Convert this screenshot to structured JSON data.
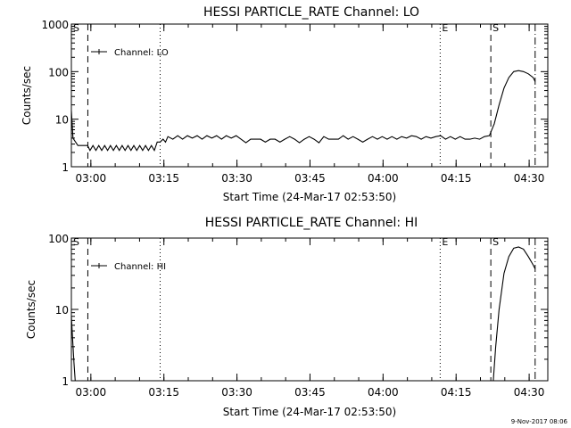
{
  "footer_date": "9-Nov-2017 08:06",
  "chart_data": [
    {
      "type": "line",
      "title": "HESSI PARTICLE_RATE Channel: LO",
      "xlabel": "Start Time (24-Mar-17 02:53:50)",
      "ylabel": "Counts/sec",
      "yscale": "log",
      "ylim": [
        1,
        1000
      ],
      "yticks": [
        1,
        10,
        100,
        1000
      ],
      "ytick_labels": [
        "1",
        "10",
        "100",
        "1000"
      ],
      "xlim_minutes": [
        2.17,
        100.0
      ],
      "xticks_minutes": [
        6.17,
        21.17,
        36.17,
        51.17,
        66.17,
        81.17,
        96.17
      ],
      "xtick_labels": [
        "03:00",
        "03:15",
        "03:30",
        "03:45",
        "04:00",
        "04:15",
        "04:30"
      ],
      "legend": "Channel: LO",
      "markers": [
        {
          "label": "S",
          "x_minutes": 2.17,
          "style": "solid"
        },
        {
          "label": "",
          "x_minutes": 5.55,
          "style": "dashed"
        },
        {
          "label": "",
          "x_minutes": 20.4,
          "style": "dotted"
        },
        {
          "label": "E",
          "x_minutes": 77.9,
          "style": "dotted"
        },
        {
          "label": "S",
          "x_minutes": 88.3,
          "style": "dashed"
        },
        {
          "label": "",
          "x_minutes": 97.4,
          "style": "dashdot"
        }
      ],
      "series": [
        {
          "x": [
            2.17,
            2.5,
            3.5,
            5.5,
            6.0,
            6.6,
            7.2,
            7.8,
            8.4,
            9.0,
            9.6,
            10.2,
            10.8,
            11.4,
            12.0,
            12.6,
            13.2,
            13.8,
            14.4,
            15.0,
            15.6,
            16.2,
            16.8,
            17.4,
            18.0,
            18.6,
            19.2,
            19.8,
            20.4,
            21.0,
            21.5,
            22.0,
            23.0,
            24.0,
            25.0,
            26.0,
            27.0,
            28.0,
            29.0,
            30.0,
            31.0,
            32.0,
            33.0,
            34.0,
            35.0,
            36.0,
            37.0,
            38.0,
            39.0,
            40.0,
            41.0,
            42.0,
            43.0,
            44.0,
            45.0,
            46.0,
            47.0,
            48.0,
            49.0,
            50.0,
            51.0,
            52.0,
            53.0,
            54.0,
            55.0,
            56.0,
            57.0,
            58.0,
            59.0,
            60.0,
            61.0,
            62.0,
            63.0,
            64.0,
            65.0,
            66.0,
            67.0,
            68.0,
            69.0,
            70.0,
            71.0,
            72.0,
            73.0,
            74.0,
            75.0,
            76.0,
            77.0,
            78.0,
            79.0,
            80.0,
            81.0,
            82.0,
            83.0,
            84.0,
            85.0,
            86.0,
            87.0,
            88.0,
            89.0,
            90.0,
            91.0,
            92.0,
            93.0,
            94.0,
            95.0,
            96.0,
            97.0,
            97.4
          ],
          "values": [
            15,
            4,
            2.8,
            2.8,
            2.2,
            2.8,
            2.2,
            2.8,
            2.2,
            2.8,
            2.2,
            2.8,
            2.2,
            2.8,
            2.2,
            2.8,
            2.2,
            2.8,
            2.2,
            2.8,
            2.2,
            2.8,
            2.2,
            2.8,
            2.2,
            2.8,
            2.2,
            3.3,
            3.3,
            3.8,
            3.3,
            4.3,
            3.8,
            4.5,
            3.8,
            4.5,
            4.0,
            4.5,
            3.8,
            4.5,
            4.0,
            4.5,
            3.8,
            4.5,
            4.0,
            4.5,
            3.8,
            3.2,
            3.8,
            3.8,
            3.8,
            3.3,
            3.8,
            3.8,
            3.3,
            3.8,
            4.3,
            3.8,
            3.2,
            3.8,
            4.3,
            3.8,
            3.2,
            4.3,
            3.8,
            3.8,
            3.8,
            4.5,
            3.8,
            4.3,
            3.8,
            3.3,
            3.8,
            4.3,
            3.8,
            4.3,
            3.8,
            4.3,
            3.8,
            4.3,
            4.0,
            4.5,
            4.3,
            3.8,
            4.3,
            4.0,
            4.3,
            4.5,
            3.8,
            4.3,
            3.8,
            4.3,
            3.8,
            3.8,
            4.0,
            3.8,
            4.3,
            4.5,
            8,
            20,
            45,
            75,
            100,
            105,
            100,
            90,
            75,
            62
          ]
        }
      ]
    },
    {
      "type": "line",
      "title": "HESSI PARTICLE_RATE Channel: HI",
      "xlabel": "Start Time (24-Mar-17 02:53:50)",
      "ylabel": "Counts/sec",
      "yscale": "log",
      "ylim": [
        1,
        100
      ],
      "yticks": [
        1,
        10,
        100
      ],
      "ytick_labels": [
        "1",
        "10",
        "100"
      ],
      "xlim_minutes": [
        2.17,
        100.0
      ],
      "xticks_minutes": [
        6.17,
        21.17,
        36.17,
        51.17,
        66.17,
        81.17,
        96.17
      ],
      "xtick_labels": [
        "03:00",
        "03:15",
        "03:30",
        "03:45",
        "04:00",
        "04:15",
        "04:30"
      ],
      "legend": "Channel: HI",
      "markers": [
        {
          "label": "S",
          "x_minutes": 2.17,
          "style": "solid"
        },
        {
          "label": "",
          "x_minutes": 5.55,
          "style": "dashed"
        },
        {
          "label": "",
          "x_minutes": 20.4,
          "style": "dotted"
        },
        {
          "label": "E",
          "x_minutes": 77.9,
          "style": "dotted"
        },
        {
          "label": "S",
          "x_minutes": 88.3,
          "style": "dashed"
        },
        {
          "label": "",
          "x_minutes": 97.4,
          "style": "dashdot"
        }
      ],
      "series": [
        {
          "x": [
            2.17,
            2.4,
            2.7,
            2.95
          ],
          "values": [
            8,
            4,
            1.8,
            1
          ]
        },
        {
          "x": [
            88.8,
            89.3,
            90.0,
            91.0,
            92.0,
            93.0,
            94.0,
            95.0,
            96.0,
            97.0,
            97.4
          ],
          "values": [
            1,
            3,
            10,
            32,
            55,
            72,
            75,
            70,
            55,
            42,
            37
          ]
        }
      ]
    }
  ]
}
